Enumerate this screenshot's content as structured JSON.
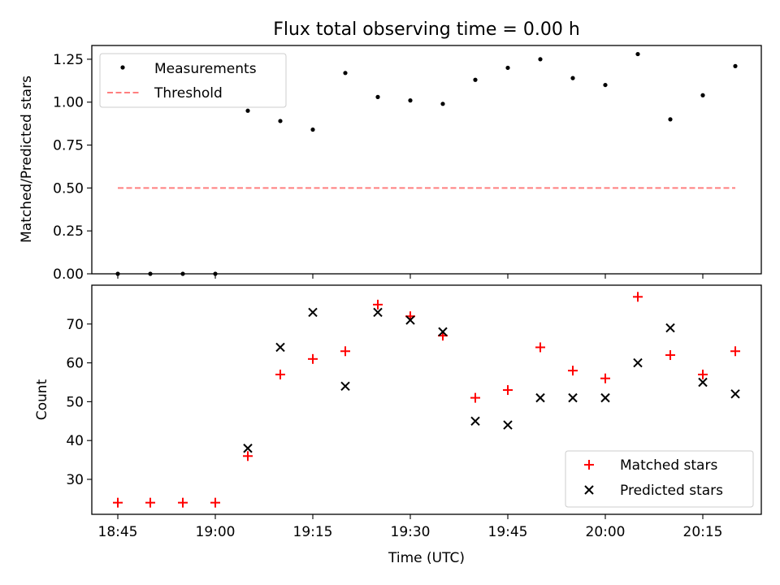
{
  "chart_data": [
    {
      "type": "scatter",
      "title": "Flux total observing time = 0.00 h",
      "xlabel": "",
      "ylabel": "Matched/Predicted stars",
      "ylim": [
        0,
        1.33
      ],
      "yticks": [
        "0.00",
        "0.25",
        "0.50",
        "0.75",
        "1.00",
        "1.25"
      ],
      "yticks_values": [
        0,
        0.25,
        0.5,
        0.75,
        1.0,
        1.25
      ],
      "x_tick_labels_visible": false,
      "legend_position": "upper left",
      "series": [
        {
          "name": "Measurements",
          "style": "point",
          "color": "#000000",
          "x": [
            "18:45",
            "18:50",
            "18:55",
            "19:00",
            "19:05",
            "19:10",
            "19:15",
            "19:20",
            "19:25",
            "19:30",
            "19:35",
            "19:40",
            "19:45",
            "19:50",
            "19:55",
            "20:00",
            "20:05",
            "20:10",
            "20:15",
            "20:20"
          ],
          "y": [
            0.0,
            0.0,
            0.0,
            0.0,
            0.95,
            0.89,
            0.84,
            1.17,
            1.03,
            1.01,
            0.99,
            1.13,
            1.2,
            1.25,
            1.14,
            1.1,
            1.28,
            0.9,
            1.04,
            1.21
          ]
        },
        {
          "name": "Threshold",
          "style": "dashed-line",
          "color": "#ff7f7f",
          "x": [
            "18:45",
            "20:20"
          ],
          "y": [
            0.5,
            0.5
          ]
        }
      ]
    },
    {
      "type": "scatter",
      "title": "",
      "xlabel": "Time (UTC)",
      "ylabel": "Count",
      "ylim": [
        21,
        80
      ],
      "yticks": [
        "30",
        "40",
        "50",
        "60",
        "70"
      ],
      "yticks_values": [
        30,
        40,
        50,
        60,
        70
      ],
      "xlim": [
        "18:41",
        "20:24"
      ],
      "xticks": [
        "18:45",
        "19:00",
        "19:15",
        "19:30",
        "19:45",
        "20:00",
        "20:15"
      ],
      "legend_position": "lower right",
      "series": [
        {
          "name": "Matched stars",
          "style": "plus",
          "color": "#ff0000",
          "x": [
            "18:45",
            "18:50",
            "18:55",
            "19:00",
            "19:05",
            "19:10",
            "19:15",
            "19:20",
            "19:25",
            "19:30",
            "19:35",
            "19:40",
            "19:45",
            "19:50",
            "19:55",
            "20:00",
            "20:05",
            "20:10",
            "20:15",
            "20:20"
          ],
          "y": [
            24,
            24,
            24,
            24,
            36,
            57,
            61,
            63,
            75,
            72,
            67,
            51,
            53,
            64,
            58,
            56,
            77,
            62,
            57,
            63
          ]
        },
        {
          "name": "Predicted stars",
          "style": "x",
          "color": "#000000",
          "x": [
            "19:05",
            "19:10",
            "19:15",
            "19:20",
            "19:25",
            "19:30",
            "19:35",
            "19:40",
            "19:45",
            "19:50",
            "19:55",
            "20:00",
            "20:05",
            "20:10",
            "20:15",
            "20:20"
          ],
          "y": [
            38,
            64,
            73,
            54,
            73,
            71,
            68,
            45,
            44,
            51,
            51,
            51,
            60,
            69,
            55,
            52
          ]
        }
      ]
    }
  ]
}
